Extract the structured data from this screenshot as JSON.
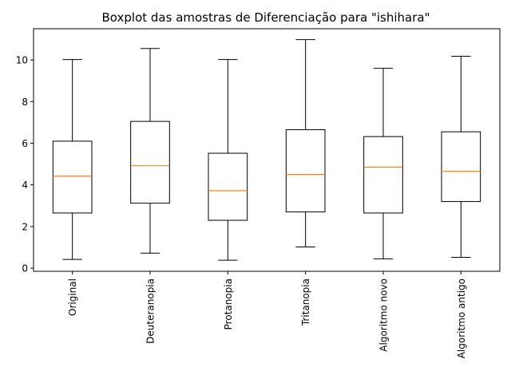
{
  "chart_data": {
    "type": "boxplot",
    "title": "Boxplot das amostras de Diferenciação para \"ishihara\"",
    "xlabel": "",
    "ylabel": "",
    "ylim": [
      -0.15,
      11.5
    ],
    "yticks": [
      0,
      2,
      4,
      6,
      8,
      10
    ],
    "grid": false,
    "categories": [
      "Original",
      "Deuteranopia",
      "Protanopia",
      "Tritanopia",
      "Algoritmo novo",
      "Algoritmo antigo"
    ],
    "boxes": [
      {
        "whisker_low": 0.42,
        "q1": 2.65,
        "median": 4.42,
        "q3": 6.1,
        "whisker_high": 10.02
      },
      {
        "whisker_low": 0.72,
        "q1": 3.12,
        "median": 4.92,
        "q3": 7.05,
        "whisker_high": 10.55
      },
      {
        "whisker_low": 0.38,
        "q1": 2.3,
        "median": 3.72,
        "q3": 5.52,
        "whisker_high": 10.02
      },
      {
        "whisker_low": 1.02,
        "q1": 2.7,
        "median": 4.5,
        "q3": 6.65,
        "whisker_high": 10.98
      },
      {
        "whisker_low": 0.45,
        "q1": 2.65,
        "median": 4.85,
        "q3": 6.32,
        "whisker_high": 9.6
      },
      {
        "whisker_low": 0.52,
        "q1": 3.2,
        "median": 4.65,
        "q3": 6.55,
        "whisker_high": 10.18
      }
    ],
    "colors": {
      "box": "#000000",
      "median": "#ff7f0e",
      "background": "#ffffff"
    }
  }
}
